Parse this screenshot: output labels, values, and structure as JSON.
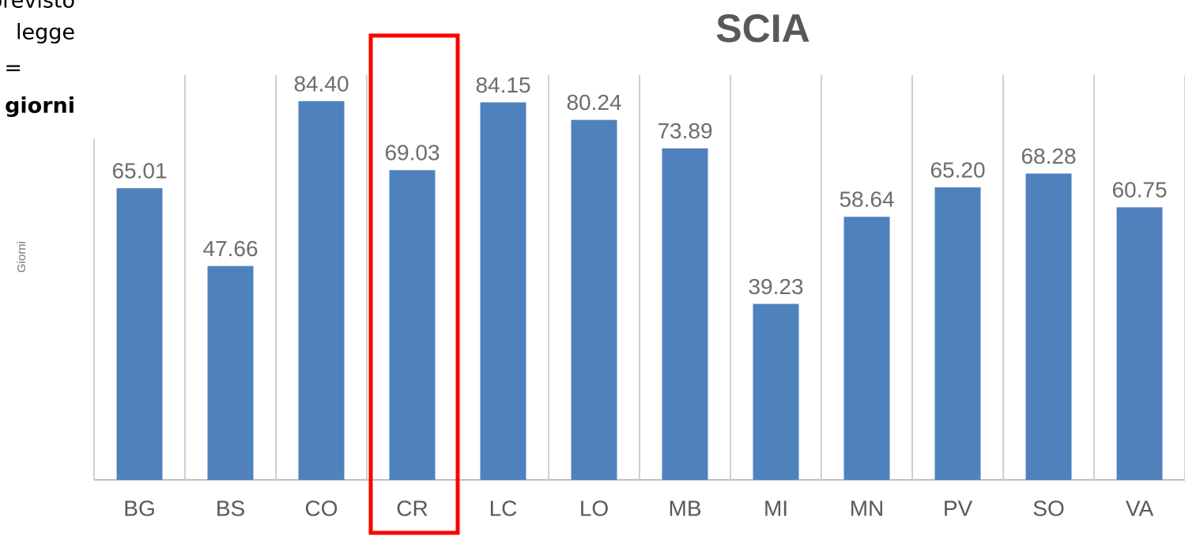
{
  "side_text": [
    "previsto",
    "legge",
    "=",
    "giorni"
  ],
  "chart_data": {
    "type": "bar",
    "title": "SCIA",
    "y_label": "Giorni",
    "categories": [
      "BG",
      "BS",
      "CO",
      "CR",
      "LC",
      "LO",
      "MB",
      "MI",
      "MN",
      "PV",
      "SO",
      "VA"
    ],
    "values": [
      65.01,
      47.66,
      84.4,
      69.03,
      84.15,
      80.24,
      73.89,
      39.23,
      58.64,
      65.2,
      68.28,
      60.75
    ],
    "value_labels": [
      "65.01",
      "47.66",
      "84.40",
      "69.03",
      "84.15",
      "80.24",
      "73.89",
      "39.23",
      "58.64",
      "65.20",
      "68.28",
      "60.75"
    ],
    "color": "#4f81bd",
    "ylim": [
      0,
      100
    ]
  }
}
